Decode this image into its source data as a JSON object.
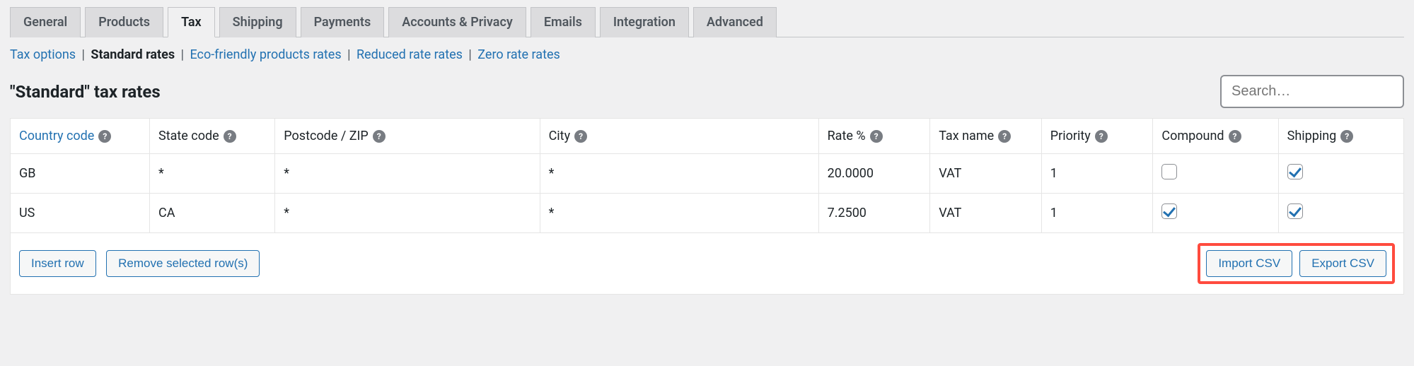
{
  "tabs": [
    {
      "label": "General",
      "active": false
    },
    {
      "label": "Products",
      "active": false
    },
    {
      "label": "Tax",
      "active": true
    },
    {
      "label": "Shipping",
      "active": false
    },
    {
      "label": "Payments",
      "active": false
    },
    {
      "label": "Accounts & Privacy",
      "active": false
    },
    {
      "label": "Emails",
      "active": false
    },
    {
      "label": "Integration",
      "active": false
    },
    {
      "label": "Advanced",
      "active": false
    }
  ],
  "sub_nav": {
    "tax_options": "Tax options",
    "standard_rates": "Standard rates",
    "eco_friendly": "Eco-friendly products rates",
    "reduced_rate": "Reduced rate rates",
    "zero_rate": "Zero rate rates"
  },
  "heading": "\"Standard\" tax rates",
  "search_placeholder": "Search…",
  "columns": {
    "country": "Country code",
    "state": "State code",
    "postcode": "Postcode / ZIP",
    "city": "City",
    "rate": "Rate %",
    "taxname": "Tax name",
    "priority": "Priority",
    "compound": "Compound",
    "shipping": "Shipping"
  },
  "rows": [
    {
      "country": "GB",
      "state": "*",
      "postcode": "*",
      "city": "*",
      "rate": "20.0000",
      "taxname": "VAT",
      "priority": "1",
      "compound": false,
      "shipping": true
    },
    {
      "country": "US",
      "state": "CA",
      "postcode": "*",
      "city": "*",
      "rate": "7.2500",
      "taxname": "VAT",
      "priority": "1",
      "compound": true,
      "shipping": true
    }
  ],
  "buttons": {
    "insert_row": "Insert row",
    "remove_rows": "Remove selected row(s)",
    "import_csv": "Import CSV",
    "export_csv": "Export CSV"
  },
  "colors": {
    "link": "#2271b1",
    "highlight_border": "#ff4b3e",
    "bg": "#f0f0f1",
    "tab_bg": "#dcdcde",
    "border": "#c3c4c7"
  }
}
